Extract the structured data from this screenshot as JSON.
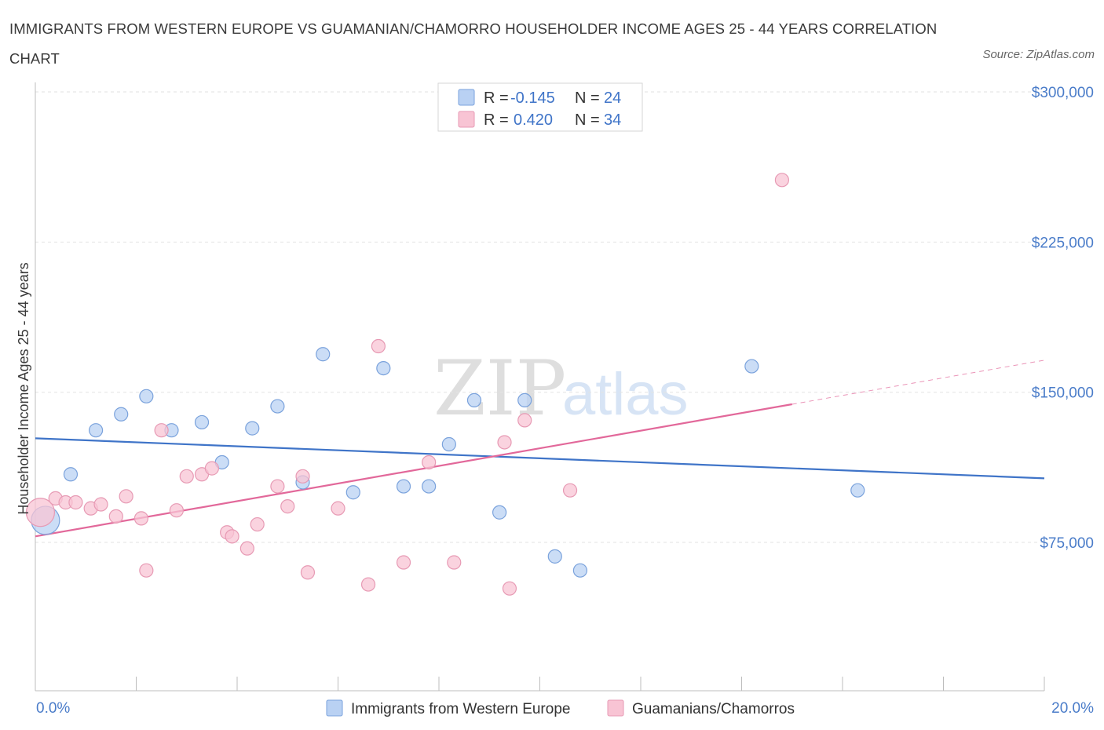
{
  "title": "IMMIGRANTS FROM WESTERN EUROPE VS GUAMANIAN/CHAMORRO HOUSEHOLDER INCOME AGES 25 - 44 YEARS CORRELATION CHART",
  "source": "Source: ZipAtlas.com",
  "watermark": {
    "zip": "ZIP",
    "atlas": "atlas"
  },
  "colors": {
    "blue": "#3f74c8",
    "blue_fill": "#b9d1f3",
    "pink": "#e2689a",
    "pink_fill": "#f8c4d4",
    "tick": "#4a7cc9"
  },
  "legend": {
    "r_label": "R =",
    "n_label": "N =",
    "rows": [
      {
        "r": "-0.145",
        "n": "24"
      },
      {
        "r": "0.420",
        "n": "34"
      }
    ]
  },
  "chart_data": {
    "type": "scatter",
    "ylabel": "Householder Income Ages 25 - 44 years",
    "x_tick_labels": [
      "0.0%",
      "20.0%"
    ],
    "y_tick_labels": [
      "$75,000",
      "$150,000",
      "$225,000",
      "$300,000"
    ],
    "y_ticks": [
      75000,
      150000,
      225000,
      300000
    ],
    "xlim": [
      0,
      20
    ],
    "ylim": [
      0,
      300000
    ],
    "grid": true,
    "legend_position": "top-center",
    "series": [
      {
        "name": "Immigrants from Western Europe",
        "color": "#3f74c8",
        "trend": {
          "x": [
            0,
            20
          ],
          "y": [
            127000,
            107000
          ]
        },
        "points": [
          {
            "x": 0.2,
            "y": 86000,
            "big": true
          },
          {
            "x": 0.7,
            "y": 109000
          },
          {
            "x": 1.2,
            "y": 131000
          },
          {
            "x": 1.7,
            "y": 139000
          },
          {
            "x": 2.2,
            "y": 148000
          },
          {
            "x": 2.7,
            "y": 131000
          },
          {
            "x": 3.3,
            "y": 135000
          },
          {
            "x": 3.7,
            "y": 115000
          },
          {
            "x": 4.3,
            "y": 132000
          },
          {
            "x": 4.8,
            "y": 143000
          },
          {
            "x": 5.3,
            "y": 105000
          },
          {
            "x": 5.7,
            "y": 169000
          },
          {
            "x": 6.3,
            "y": 100000
          },
          {
            "x": 6.9,
            "y": 162000
          },
          {
            "x": 7.3,
            "y": 103000
          },
          {
            "x": 7.8,
            "y": 103000
          },
          {
            "x": 8.2,
            "y": 124000
          },
          {
            "x": 8.7,
            "y": 146000
          },
          {
            "x": 9.2,
            "y": 90000
          },
          {
            "x": 9.7,
            "y": 146000
          },
          {
            "x": 10.3,
            "y": 68000
          },
          {
            "x": 10.8,
            "y": 61000
          },
          {
            "x": 14.2,
            "y": 163000
          },
          {
            "x": 16.3,
            "y": 101000
          }
        ]
      },
      {
        "name": "Guamanians/Chamorros",
        "color": "#e2689a",
        "trend": {
          "x": [
            0,
            15
          ],
          "y": [
            78000,
            144000
          ]
        },
        "trend_dashed": {
          "x": [
            15,
            20
          ],
          "y": [
            144000,
            166000
          ]
        },
        "points": [
          {
            "x": 0.1,
            "y": 90000,
            "big": true
          },
          {
            "x": 0.4,
            "y": 97000
          },
          {
            "x": 0.6,
            "y": 95000
          },
          {
            "x": 0.8,
            "y": 95000
          },
          {
            "x": 1.1,
            "y": 92000
          },
          {
            "x": 1.3,
            "y": 94000
          },
          {
            "x": 1.6,
            "y": 88000
          },
          {
            "x": 1.8,
            "y": 98000
          },
          {
            "x": 2.1,
            "y": 87000
          },
          {
            "x": 2.2,
            "y": 61000
          },
          {
            "x": 2.5,
            "y": 131000
          },
          {
            "x": 2.8,
            "y": 91000
          },
          {
            "x": 3.0,
            "y": 108000
          },
          {
            "x": 3.3,
            "y": 109000
          },
          {
            "x": 3.5,
            "y": 112000
          },
          {
            "x": 3.8,
            "y": 80000
          },
          {
            "x": 3.9,
            "y": 78000
          },
          {
            "x": 4.2,
            "y": 72000
          },
          {
            "x": 4.4,
            "y": 84000
          },
          {
            "x": 4.8,
            "y": 103000
          },
          {
            "x": 5.0,
            "y": 93000
          },
          {
            "x": 5.3,
            "y": 108000
          },
          {
            "x": 5.4,
            "y": 60000
          },
          {
            "x": 6.0,
            "y": 92000
          },
          {
            "x": 6.6,
            "y": 54000
          },
          {
            "x": 6.8,
            "y": 173000
          },
          {
            "x": 7.3,
            "y": 65000
          },
          {
            "x": 7.8,
            "y": 115000
          },
          {
            "x": 8.3,
            "y": 65000
          },
          {
            "x": 9.3,
            "y": 125000
          },
          {
            "x": 9.4,
            "y": 52000
          },
          {
            "x": 9.7,
            "y": 136000
          },
          {
            "x": 10.6,
            "y": 101000
          },
          {
            "x": 14.8,
            "y": 256000
          }
        ]
      }
    ]
  }
}
